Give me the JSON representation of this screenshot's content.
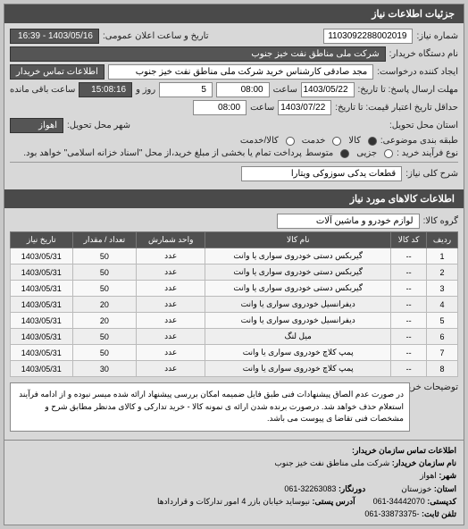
{
  "header": {
    "title": "جزئیات اطلاعات نیاز"
  },
  "top": {
    "reqno_label": "شماره نیاز:",
    "reqno": "1103092288002019",
    "announce_label": "تاریخ و ساعت اعلان عمومی:",
    "announce": "1403/05/16 - 16:39",
    "buyer_label": "نام دستگاه خریدار:",
    "buyer": "شرکت ملی مناطق نفت خیز جنوب",
    "requester_label": "ایجاد کننده درخواست:",
    "requester": "مجد صادقی  کارشناس خرید  شرکت ملی مناطق نفت خیز جنوب",
    "contact_btn": "اطلاعات تماس خریدار",
    "deadline_label": "مهلت ارسال پاسخ: تا تاریخ:",
    "deadline_date": "1403/05/22",
    "time_label": "ساعت",
    "deadline_time": "08:00",
    "days_and": "روز و",
    "days": "5",
    "remaining": "ساعت باقی مانده",
    "remaining_v": "15:08:16",
    "credit_label": "حداقل تاریخ اعتبار قیمت: تا تاریخ:",
    "credit_date": "1403/07/22",
    "credit_time": "08:00",
    "province_label": "استان محل تحویل:",
    "city_label": "شهر محل تحویل:",
    "city": "اهواز",
    "classify_label": "طبقه بندی موضوعی:",
    "r1": "کالا",
    "r2": "خدمت",
    "r3": "کالا/خدمت",
    "process_label": "نوع فرآیند خرید :",
    "p1": "جزیی",
    "p2": "متوسط",
    "process_note": "پرداخت تمام یا بخشی از مبلغ خرید،از محل \"اسناد خزانه اسلامی\" خواهد بود."
  },
  "need": {
    "title_label": "شرح کلی نیاز:",
    "title": "قطعات یدکی سوزوکی ویتارا"
  },
  "goods": {
    "header": "اطلاعات کالاهای مورد نیاز",
    "group_label": "گروه کالا:",
    "group": "لوازم خودرو و ماشین آلات",
    "cols": [
      "ردیف",
      "کد کالا",
      "نام کالا",
      "واحد شمارش",
      "تعداد / مقدار",
      "تاریخ نیاز"
    ],
    "rows": [
      [
        "1",
        "--",
        "گیربکس دستی خودروی سواری یا وانت",
        "عدد",
        "50",
        "1403/05/31"
      ],
      [
        "2",
        "--",
        "گیربکس دستی خودروی سواری یا وانت",
        "عدد",
        "50",
        "1403/05/31"
      ],
      [
        "3",
        "--",
        "گیربکس دستی خودروی سواری یا وانت",
        "عدد",
        "50",
        "1403/05/31"
      ],
      [
        "4",
        "--",
        "دیفرانسیل خودروی سواری یا وانت",
        "عدد",
        "20",
        "1403/05/31"
      ],
      [
        "5",
        "--",
        "دیفرانسیل خودروی سواری یا وانت",
        "عدد",
        "20",
        "1403/05/31"
      ],
      [
        "6",
        "--",
        "میل لنگ",
        "عدد",
        "50",
        "1403/05/31"
      ],
      [
        "7",
        "--",
        "پمپ کلاچ خودروی سواری یا وانت",
        "عدد",
        "50",
        "1403/05/31"
      ],
      [
        "8",
        "--",
        "پمپ کلاچ خودروی سواری یا وانت",
        "عدد",
        "30",
        "1403/05/31"
      ]
    ]
  },
  "note": {
    "label": "توضیحات خریدار:",
    "text": "در صورت عدم الصاق پیشنهادات فنی طبق فایل ضمیمه امکان بررسی پیشنهاد ارائه شده میسر نبوده و از ادامه فرآیند استعلام حذف خواهد شد. درصورت برنده شدن ارائه ی نمونه کالا - خرید تدارکی و کالای مدنظر مطابق شرح و مشخصات فنی تقاضا ی پیوست می باشد."
  },
  "footer": {
    "header": "اطلاعات تماس سازمان خریدار:",
    "org_l": "نام سازمان خریدار:",
    "org": "شرکت ملی مناطق نفت خیز جنوب",
    "city_l": "شهر:",
    "city": "اهواز",
    "prov_l": "استان:",
    "prov": "خوزستان",
    "fax_l": "دورنگار:",
    "fax": "32263083-061",
    "post_l": "کدپستی:",
    "post": "34442070-061",
    "addr_l": "آدرس پستی:",
    "addr": "نیوساید خیابان بازر 4 امور تدارکات و قراردادها",
    "tel_l": "تلفن ثابت:",
    "tel": "-33873375-061"
  }
}
